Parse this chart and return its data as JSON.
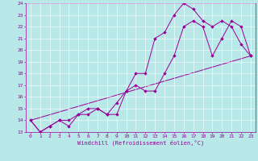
{
  "xlabel": "Windchill (Refroidissement éolien,°C)",
  "xlim": [
    -0.5,
    23.5
  ],
  "ylim": [
    13,
    24
  ],
  "xticks": [
    0,
    1,
    2,
    3,
    4,
    5,
    6,
    7,
    8,
    9,
    10,
    11,
    12,
    13,
    14,
    15,
    16,
    17,
    18,
    19,
    20,
    21,
    22,
    23
  ],
  "yticks": [
    13,
    14,
    15,
    16,
    17,
    18,
    19,
    20,
    21,
    22,
    23,
    24
  ],
  "bg_color": "#b8e8e8",
  "line_color": "#990099",
  "line1_x": [
    0,
    1,
    2,
    3,
    4,
    5,
    6,
    7,
    8,
    9,
    10,
    11,
    12,
    13,
    14,
    15,
    16,
    17,
    18,
    19,
    20,
    21,
    22,
    23
  ],
  "line1_y": [
    14.0,
    13.0,
    13.5,
    14.0,
    14.0,
    14.5,
    15.0,
    15.0,
    14.5,
    14.5,
    16.5,
    18.0,
    18.0,
    21.0,
    21.5,
    23.0,
    24.0,
    23.5,
    22.5,
    22.0,
    22.5,
    22.0,
    20.5,
    19.5
  ],
  "line2_x": [
    0,
    1,
    2,
    3,
    4,
    5,
    6,
    7,
    8,
    9,
    10,
    11,
    12,
    13,
    14,
    15,
    16,
    17,
    18,
    19,
    20,
    21,
    22,
    23
  ],
  "line2_y": [
    14.0,
    13.0,
    13.5,
    14.0,
    13.5,
    14.5,
    14.5,
    15.0,
    14.5,
    15.5,
    16.5,
    17.0,
    16.5,
    16.5,
    18.0,
    19.5,
    22.0,
    22.5,
    22.0,
    19.5,
    21.0,
    22.5,
    22.0,
    19.5
  ],
  "line3_x": [
    0,
    23
  ],
  "line3_y": [
    14.0,
    19.5
  ]
}
